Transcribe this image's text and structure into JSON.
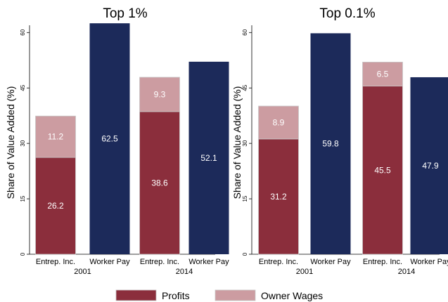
{
  "chart_data": [
    {
      "type": "bar",
      "stacked": true,
      "title": "Top 1%",
      "ylabel": "Share of Value Added (%)",
      "xlabel": "",
      "ylim": [
        0,
        65
      ],
      "yticks": [
        0,
        15,
        30,
        45,
        60
      ],
      "groups": [
        "2001",
        "2014"
      ],
      "categories": [
        "Entrep. Inc.",
        "Worker Pay",
        "Entrep. Inc.",
        "Worker Pay"
      ],
      "bar_groups": [
        "2001",
        "2001",
        "2014",
        "2014"
      ],
      "series": [
        {
          "name": "Profits",
          "values": [
            26.2,
            null,
            38.6,
            null
          ]
        },
        {
          "name": "Owner Wages",
          "values": [
            11.2,
            null,
            9.3,
            null
          ]
        },
        {
          "name": "",
          "values": [
            null,
            62.5,
            null,
            52.1
          ]
        }
      ],
      "grid": false
    },
    {
      "type": "bar",
      "stacked": true,
      "title": "Top 0.1%",
      "ylabel": "Share of Value Added (%)",
      "xlabel": "",
      "ylim": [
        0,
        65
      ],
      "yticks": [
        0,
        15,
        30,
        45,
        60
      ],
      "groups": [
        "2001",
        "2014"
      ],
      "categories": [
        "Entrep. Inc.",
        "Worker Pay",
        "Entrep. Inc.",
        "Worker Pay"
      ],
      "bar_groups": [
        "2001",
        "2001",
        "2014",
        "2014"
      ],
      "series": [
        {
          "name": "Profits",
          "values": [
            31.2,
            null,
            45.5,
            null
          ]
        },
        {
          "name": "Owner Wages",
          "values": [
            8.9,
            null,
            6.5,
            null
          ]
        },
        {
          "name": "",
          "values": [
            null,
            59.8,
            null,
            47.9
          ]
        }
      ],
      "grid": false
    }
  ],
  "legend": {
    "placement": "bottom",
    "items": [
      {
        "label": "Profits",
        "color": "#8b2e3c"
      },
      {
        "label": "Owner Wages",
        "color": "#cc9ca1"
      }
    ]
  },
  "colors": {
    "profits": "#8b2e3c",
    "owner_wages": "#cc9ca1",
    "worker_pay": "#1c2a5a",
    "bar_outline": "#c9c9c9"
  }
}
